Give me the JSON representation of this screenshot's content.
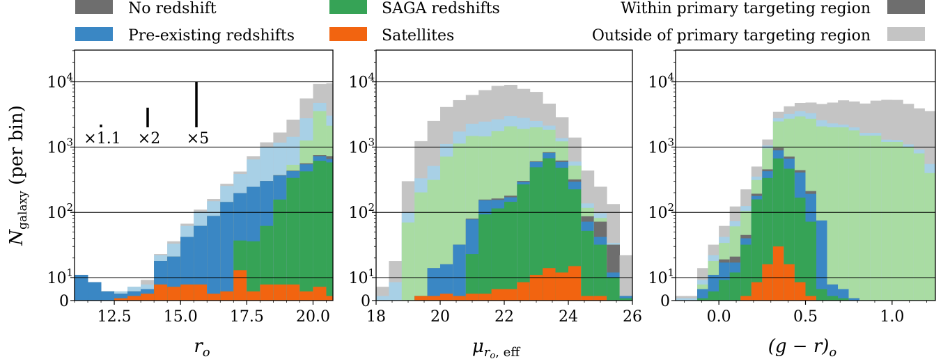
{
  "legend": {
    "items": [
      {
        "label": "No redshift",
        "color": "#6e6e6e"
      },
      {
        "label": "Pre-existing redshifts",
        "color": "#3a87c4"
      },
      {
        "label": "SAGA redshifts",
        "color": "#36a356"
      },
      {
        "label": "Satellites",
        "color": "#f26410"
      }
    ],
    "region_items": [
      {
        "label": "Within primary targeting region",
        "color": "#6e6e6e"
      },
      {
        "label": "Outside of primary targeting region",
        "color": "#c4c4c4"
      }
    ]
  },
  "colors": {
    "no_z": "#6e6e6e",
    "pre": "#3a87c4",
    "saga": "#36a356",
    "sat": "#f26410",
    "out_no_z": "#c4c4c4",
    "out_pre": "#a8d0e6",
    "out_saga": "#a9dca3"
  },
  "y_axis": {
    "label_main": "N",
    "label_sub": "galaxy",
    "label_rest": " (per bin)",
    "ticks": [
      {
        "value": 0,
        "base": "0",
        "exp": ""
      },
      {
        "value": 10,
        "base": "10",
        "exp": "1"
      },
      {
        "value": 100,
        "base": "10",
        "exp": "2"
      },
      {
        "value": 1000,
        "base": "10",
        "exp": "3"
      },
      {
        "value": 10000,
        "base": "10",
        "exp": "4"
      }
    ]
  },
  "scale_markers": [
    {
      "label": "×1.1",
      "factor": 1.1
    },
    {
      "label": "×2",
      "factor": 2
    },
    {
      "label": "×5",
      "factor": 5
    }
  ],
  "chart_data": [
    {
      "type": "bar",
      "xlabel": "r",
      "xlabel_sub": "o",
      "xlim": [
        11,
        20.75
      ],
      "ylim": [
        0,
        30000
      ],
      "yscale": "symlog",
      "xticks": [
        {
          "v": 12.5,
          "l": "12.5"
        },
        {
          "v": 15,
          "l": "15.0"
        },
        {
          "v": 17.5,
          "l": "17.5"
        },
        {
          "v": 20,
          "l": "20.0"
        }
      ],
      "bin_start": 11.0,
      "bin_width": 0.5,
      "series": [
        {
          "key": "sat",
          "name": "Satellites",
          "values": [
            0,
            0,
            0,
            1,
            2,
            3,
            7,
            6,
            7,
            7,
            3,
            4,
            13,
            4,
            7,
            7,
            7,
            4,
            6,
            2
          ]
        },
        {
          "key": "saga",
          "name": "SAGA redshifts",
          "values": [
            0,
            0,
            0,
            0,
            0,
            0,
            0,
            0,
            0,
            0,
            0,
            0,
            24,
            32,
            55,
            150,
            330,
            420,
            610,
            580
          ]
        },
        {
          "key": "pre",
          "name": "Pre-existing redshifts",
          "values": [
            11,
            8,
            4,
            2,
            2,
            2,
            11,
            15,
            35,
            55,
            85,
            140,
            160,
            210,
            240,
            210,
            90,
            120,
            110,
            75
          ]
        },
        {
          "key": "no_z",
          "name": "No redshift",
          "values": [
            0,
            0,
            0,
            0,
            0,
            0,
            0,
            0,
            0,
            0,
            0,
            0,
            0,
            0,
            0,
            4,
            8,
            20,
            25,
            70
          ]
        },
        {
          "key": "out_no_z",
          "name": "Outside: No redshift",
          "values": [
            0,
            0,
            0,
            0,
            0,
            2,
            1,
            3,
            5,
            8,
            12,
            20,
            35,
            80,
            180,
            500,
            1200,
            2800,
            4500,
            6500
          ]
        },
        {
          "key": "out_pre",
          "name": "Outside: Pre-existing redshifts",
          "values": [
            0,
            0,
            0,
            1,
            2,
            2,
            4,
            12,
            20,
            40,
            60,
            110,
            190,
            400,
            700,
            800,
            900,
            1500,
            1200,
            900
          ]
        },
        {
          "key": "out_saga",
          "name": "Outside: SAGA redshifts",
          "values": [
            0,
            0,
            0,
            0,
            0,
            0,
            0,
            0,
            0,
            0,
            0,
            0,
            0,
            0,
            0,
            0,
            100,
            700,
            2800,
            1400
          ]
        }
      ]
    },
    {
      "type": "bar",
      "xlabel": "μ",
      "xlabel_sub": "r",
      "xlabel_subsub": "o",
      "xlabel_sub2": ", eff",
      "xlim": [
        18,
        26
      ],
      "ylim": [
        0,
        30000
      ],
      "yscale": "symlog",
      "xticks": [
        {
          "v": 18,
          "l": "18"
        },
        {
          "v": 20,
          "l": "20"
        },
        {
          "v": 22,
          "l": "22"
        },
        {
          "v": 24,
          "l": "24"
        },
        {
          "v": 26,
          "l": "26"
        }
      ],
      "bin_start": 18.0,
      "bin_width": 0.4,
      "series": [
        {
          "key": "sat",
          "name": "Satellites",
          "values": [
            0,
            0,
            0,
            2,
            2,
            3,
            2,
            3,
            3,
            5,
            5,
            8,
            11,
            14,
            12,
            15,
            2,
            2,
            0,
            0
          ]
        },
        {
          "key": "saga",
          "name": "SAGA redshifts",
          "values": [
            0,
            0,
            0,
            0,
            0,
            0,
            0,
            20,
            90,
            110,
            140,
            260,
            480,
            660,
            470,
            210,
            50,
            30,
            10,
            1
          ]
        },
        {
          "key": "pre",
          "name": "Pre-existing redshifts",
          "values": [
            0,
            0,
            0,
            0,
            12,
            13,
            30,
            55,
            60,
            40,
            25,
            25,
            100,
            140,
            110,
            70,
            20,
            10,
            2,
            1
          ]
        },
        {
          "key": "no_z",
          "name": "No redshift",
          "values": [
            0,
            0,
            0,
            0,
            0,
            0,
            0,
            2,
            4,
            8,
            10,
            10,
            15,
            20,
            30,
            25,
            15,
            30,
            20,
            0
          ]
        },
        {
          "key": "out_no_z",
          "name": "Outside: No redshift",
          "values": [
            4,
            10,
            200,
            900,
            2000,
            3000,
            3500,
            4000,
            5000,
            6000,
            6000,
            5000,
            4500,
            2500,
            1500,
            800,
            300,
            150,
            100,
            20
          ]
        },
        {
          "key": "out_pre",
          "name": "Outside: Pre-existing redshifts",
          "values": [
            2,
            8,
            30,
            130,
            200,
            400,
            600,
            800,
            1000,
            900,
            900,
            900,
            500,
            300,
            150,
            80,
            20,
            15,
            2,
            0
          ]
        },
        {
          "key": "out_saga",
          "name": "Outside: SAGA redshifts",
          "values": [
            0,
            0,
            70,
            200,
            300,
            700,
            1100,
            1400,
            1300,
            1600,
            1900,
            1600,
            1400,
            1000,
            600,
            200,
            30,
            10,
            0,
            0
          ]
        }
      ]
    },
    {
      "type": "bar",
      "xlabel": "(g − r)",
      "xlabel_sub": "o",
      "xlim": [
        -0.25,
        1.25
      ],
      "ylim": [
        0,
        30000
      ],
      "yscale": "symlog",
      "xticks": [
        {
          "v": 0,
          "l": "0.0"
        },
        {
          "v": 0.5,
          "l": "0.5"
        },
        {
          "v": 1,
          "l": "1.0"
        }
      ],
      "bin_start": -0.25,
      "bin_width": 0.0625,
      "series": [
        {
          "key": "sat",
          "name": "Satellites",
          "values": [
            0,
            0,
            0,
            0,
            0,
            0,
            2,
            8,
            16,
            30,
            16,
            8,
            2,
            0,
            0,
            0,
            0,
            0,
            0,
            0,
            0,
            0,
            0,
            0
          ]
        },
        {
          "key": "saga",
          "name": "SAGA redshifts",
          "values": [
            0,
            0,
            1,
            4,
            9,
            12,
            30,
            150,
            320,
            640,
            450,
            160,
            70,
            5,
            2,
            1,
            0,
            0,
            0,
            0,
            0,
            0,
            0,
            0
          ]
        },
        {
          "key": "pre",
          "name": "Pre-existing redshifts",
          "values": [
            0,
            0,
            4,
            7,
            8,
            5,
            8,
            20,
            90,
            220,
            200,
            240,
            120,
            70,
            5,
            4,
            1,
            0,
            0,
            0,
            0,
            0,
            0,
            0
          ]
        },
        {
          "key": "no_z",
          "name": "No redshift",
          "values": [
            0,
            0,
            0,
            0,
            2,
            4,
            5,
            15,
            30,
            80,
            50,
            35,
            20,
            0,
            0,
            0,
            0,
            0,
            0,
            0,
            0,
            0,
            0,
            0
          ]
        },
        {
          "key": "out_no_z",
          "name": "Outside: No redshift",
          "values": [
            1,
            1,
            5,
            10,
            20,
            50,
            100,
            150,
            250,
            700,
            1000,
            1200,
            1500,
            2000,
            2500,
            3000,
            3000,
            3000,
            3500,
            4000,
            4000,
            3500,
            3000,
            3000
          ]
        },
        {
          "key": "out_pre",
          "name": "Outside: Pre-existing redshifts",
          "values": [
            1,
            1,
            2,
            4,
            8,
            12,
            20,
            40,
            100,
            300,
            500,
            600,
            600,
            500,
            300,
            200,
            200,
            150,
            150,
            100,
            80,
            100,
            120,
            150
          ]
        },
        {
          "key": "out_saga",
          "name": "Outside: SAGA redshifts",
          "values": [
            0,
            0,
            2,
            7,
            15,
            40,
            60,
            120,
            500,
            1500,
            2000,
            2500,
            2500,
            2000,
            2000,
            2000,
            1800,
            1500,
            1500,
            1200,
            1200,
            1000,
            800,
            400
          ]
        }
      ]
    }
  ]
}
